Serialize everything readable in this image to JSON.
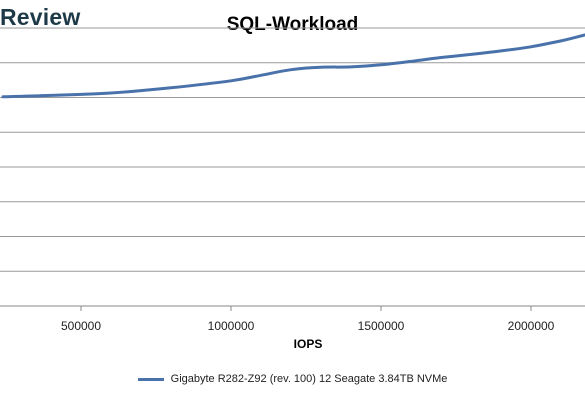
{
  "watermark": "Review",
  "chart_data": {
    "type": "line",
    "title": "SQL-Workload",
    "xlabel": "IOPS",
    "ylabel": "",
    "xlim": [
      230000,
      2180000
    ],
    "ylim": [
      0,
      8
    ],
    "x_ticks": [
      500000,
      1000000,
      1500000,
      2000000
    ],
    "x_tick_labels": [
      "500000",
      "1000000",
      "1500000",
      "2000000"
    ],
    "y_ticks": [
      1,
      2,
      3,
      4,
      5,
      6,
      7,
      8
    ],
    "grid": true,
    "legend_position": "bottom",
    "series": [
      {
        "name": "Gigabyte R282-Z92 (rev. 100) 12 Seagate 3.84TB NVMe",
        "color": "#4a72aa",
        "x": [
          240000,
          400000,
          600000,
          800000,
          1000000,
          1100000,
          1200000,
          1300000,
          1400000,
          1500000,
          1600000,
          1700000,
          1800000,
          1900000,
          2000000,
          2100000,
          2180000
        ],
        "y": [
          6.02,
          6.06,
          6.13,
          6.28,
          6.48,
          6.64,
          6.8,
          6.87,
          6.88,
          6.94,
          7.04,
          7.15,
          7.24,
          7.34,
          7.46,
          7.63,
          7.8
        ]
      }
    ]
  }
}
